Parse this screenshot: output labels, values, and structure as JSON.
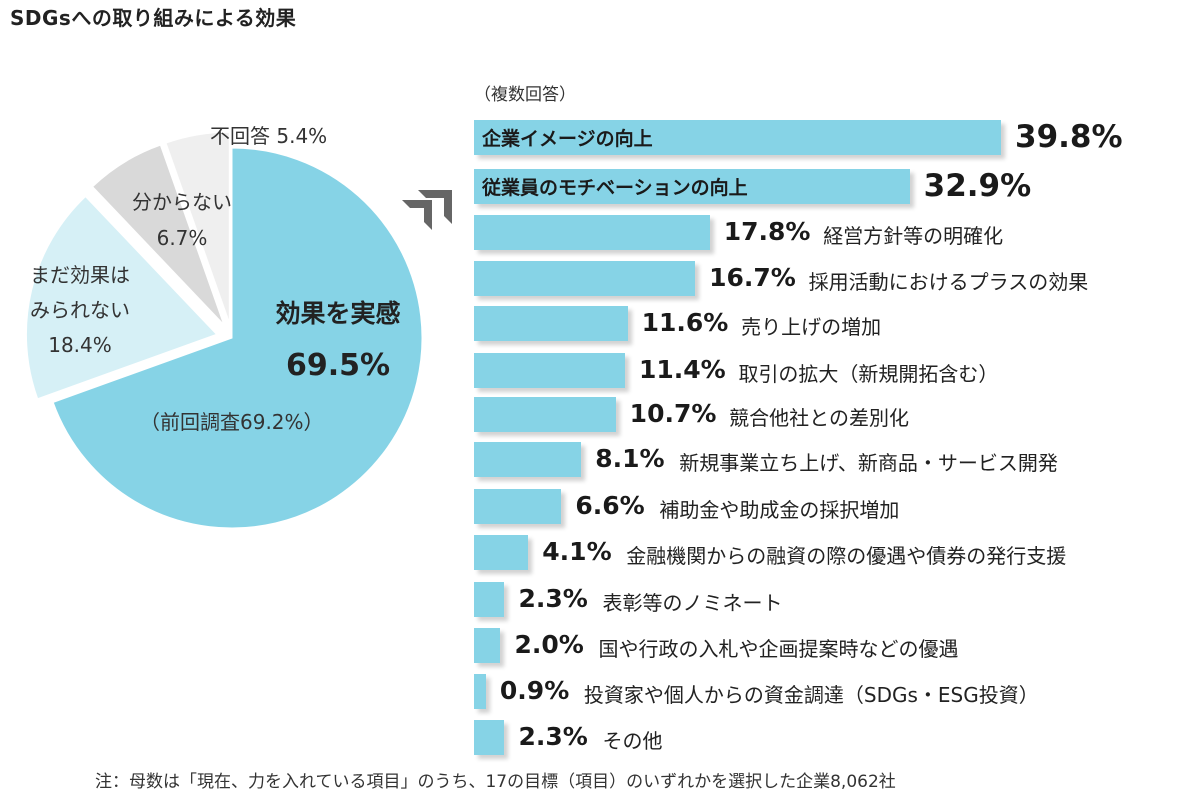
{
  "page": {
    "title": "SDGsへの取り組みによる効果",
    "footnote": "注：母数は「現在、力を入れている項目」のうち、17の目標（項目）のいずれかを選択した企業8,062社"
  },
  "colors": {
    "main": "#86d3e6",
    "light_blue": "#d6f0f6",
    "gray": "#d9d9d9",
    "light_gray": "#efefef",
    "arrow": "#666666"
  },
  "chart_data": [
    {
      "type": "pie",
      "slices": [
        {
          "label": "効果を実感",
          "value": 69.5,
          "value_text": "69.5%",
          "note": "（前回調査69.2%）",
          "color": "#86d3e6"
        },
        {
          "label": "まだ効果は\nみられない",
          "value": 18.4,
          "value_text": "18.4%",
          "color": "#d6f0f6"
        },
        {
          "label": "分からない",
          "value": 6.7,
          "value_text": "6.7%",
          "color": "#d9d9d9"
        },
        {
          "label": "不回答",
          "value": 5.4,
          "value_text": "5.4%",
          "color": "#efefef"
        }
      ]
    },
    {
      "type": "bar",
      "orientation": "horizontal",
      "note": "（複数回答）",
      "categories": [
        "企業イメージの向上",
        "従業員のモチベーションの向上",
        "経営方針等の明確化",
        "採用活動におけるプラスの効果",
        "売り上げの増加",
        "取引の拡大（新規開拓含む）",
        "競合他社との差別化",
        "新規事業立ち上げ、新商品・サービス開発",
        "補助金や助成金の採択増加",
        "金融機関からの融資の際の優遇や債券の発行支援",
        "表彰等のノミネート",
        "国や行政の入札や企画提案時などの優遇",
        "投資家や個人からの資金調達（SDGs・ESG投資）",
        "その他"
      ],
      "values": [
        39.8,
        32.9,
        17.8,
        16.7,
        11.6,
        11.4,
        10.7,
        8.1,
        6.6,
        4.1,
        2.3,
        2.0,
        0.9,
        2.3
      ],
      "value_labels": [
        "39.8%",
        "32.9%",
        "17.8%",
        "16.7%",
        "11.6%",
        "11.4%",
        "10.7%",
        "8.1%",
        "6.6%",
        "4.1%",
        "2.3%",
        "2.0%",
        "0.9%",
        "2.3%"
      ]
    }
  ]
}
